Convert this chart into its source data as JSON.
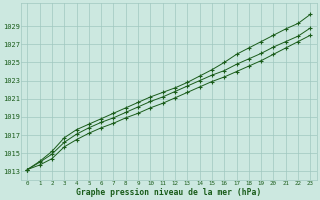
{
  "x": [
    0,
    1,
    2,
    3,
    4,
    5,
    6,
    7,
    8,
    9,
    10,
    11,
    12,
    13,
    14,
    15,
    16,
    17,
    18,
    19,
    20,
    21,
    22,
    23
  ],
  "line_mid": [
    1013.2,
    1014.0,
    1014.9,
    1016.2,
    1017.1,
    1017.8,
    1018.4,
    1018.9,
    1019.5,
    1020.1,
    1020.7,
    1021.2,
    1021.8,
    1022.4,
    1023.0,
    1023.6,
    1024.1,
    1024.8,
    1025.4,
    1026.0,
    1026.7,
    1027.3,
    1027.9,
    1028.8
  ],
  "line_high": [
    1013.2,
    1014.1,
    1015.2,
    1016.7,
    1017.6,
    1018.2,
    1018.8,
    1019.4,
    1020.0,
    1020.6,
    1021.2,
    1021.7,
    1022.2,
    1022.8,
    1023.5,
    1024.2,
    1025.0,
    1025.9,
    1026.6,
    1027.3,
    1028.0,
    1028.7,
    1029.3,
    1030.3
  ],
  "line_low": [
    1013.2,
    1013.7,
    1014.4,
    1015.7,
    1016.5,
    1017.2,
    1017.8,
    1018.3,
    1018.9,
    1019.4,
    1020.0,
    1020.5,
    1021.1,
    1021.7,
    1022.3,
    1022.9,
    1023.4,
    1024.0,
    1024.6,
    1025.2,
    1025.9,
    1026.6,
    1027.3,
    1028.0
  ],
  "line_color": "#1a5c1a",
  "bg_color": "#cce8e0",
  "grid_color": "#a0c8c0",
  "xlabel": "Graphe pression niveau de la mer (hPa)",
  "xlabel_color": "#1a5c1a",
  "yticks": [
    1013,
    1015,
    1017,
    1019,
    1021,
    1023,
    1025,
    1027,
    1029
  ],
  "ylim": [
    1012.0,
    1031.5
  ],
  "xlim": [
    -0.5,
    23.5
  ],
  "xticks": [
    0,
    1,
    2,
    3,
    4,
    5,
    6,
    7,
    8,
    9,
    10,
    11,
    12,
    13,
    14,
    15,
    16,
    17,
    18,
    19,
    20,
    21,
    22,
    23
  ]
}
